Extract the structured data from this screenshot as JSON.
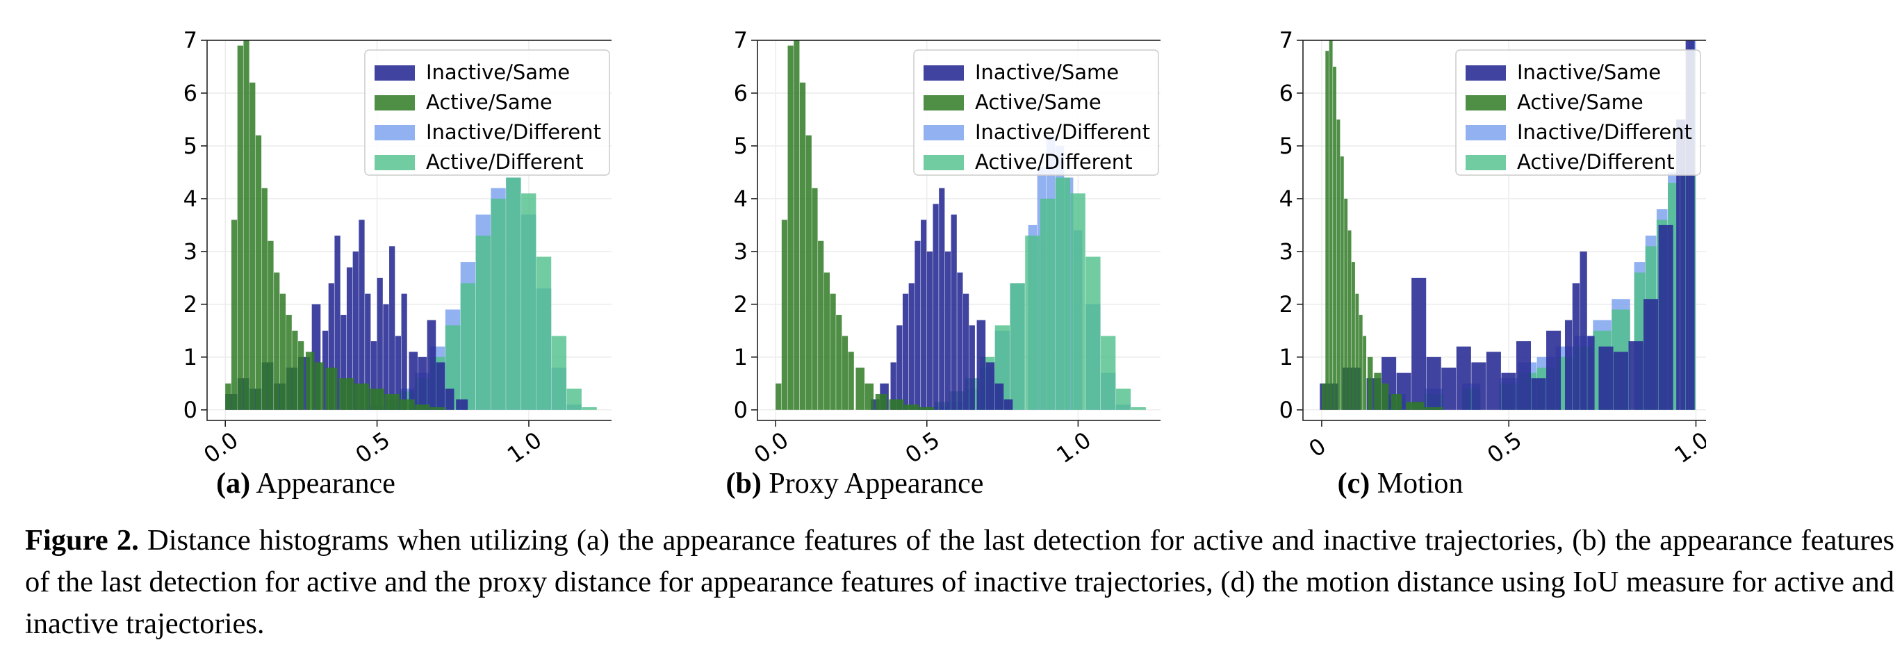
{
  "colors": {
    "inactive_same": "#2b2f96",
    "active_same": "#2f7a25",
    "inactive_different": "#7fa3ef",
    "active_different": "#4dbf8a"
  },
  "legend_entries": [
    "Inactive/Same",
    "Active/Same",
    "Inactive/Different",
    "Active/Different"
  ],
  "chart_data": [
    {
      "type": "bar",
      "subtitle_label": "(a)",
      "subtitle_text": "Appearance",
      "xlim": [
        -0.06,
        1.3
      ],
      "ylim": [
        -0.2,
        7
      ],
      "x_ticks": [
        0.0,
        0.5,
        1.0
      ],
      "x_tick_labels": [
        "0.0",
        "0.5",
        "1.0"
      ],
      "y_ticks": [
        0,
        1,
        2,
        3,
        4,
        5,
        6,
        7
      ],
      "y_tick_labels": [
        "0",
        "1",
        "2",
        "3",
        "4",
        "5",
        "6",
        "7"
      ],
      "legend": "top-right",
      "grid": true,
      "series": [
        {
          "name": "Inactive/Different",
          "color_key": "inactive_different",
          "x": [
            0.45,
            0.5,
            0.55,
            0.6,
            0.65,
            0.7,
            0.75,
            0.8,
            0.85,
            0.9,
            0.95,
            1.0,
            1.05,
            1.1,
            1.15
          ],
          "values": [
            0.02,
            0.08,
            0.2,
            0.4,
            0.7,
            1.2,
            1.9,
            2.8,
            3.7,
            4.2,
            4.4,
            3.7,
            2.3,
            0.8,
            0.1
          ]
        },
        {
          "name": "Active/Different",
          "color_key": "active_different",
          "x": [
            0.5,
            0.55,
            0.6,
            0.65,
            0.7,
            0.75,
            0.8,
            0.85,
            0.9,
            0.95,
            1.0,
            1.05,
            1.1,
            1.15,
            1.2
          ],
          "values": [
            0.05,
            0.15,
            0.35,
            0.6,
            1.0,
            1.6,
            2.4,
            3.3,
            4.0,
            4.4,
            4.1,
            2.9,
            1.4,
            0.4,
            0.05
          ]
        },
        {
          "name": "Inactive/Same",
          "color_key": "inactive_same",
          "x": [
            0.02,
            0.06,
            0.1,
            0.14,
            0.18,
            0.22,
            0.26,
            0.3,
            0.33,
            0.35,
            0.37,
            0.39,
            0.41,
            0.43,
            0.45,
            0.47,
            0.49,
            0.51,
            0.53,
            0.55,
            0.57,
            0.59,
            0.62,
            0.65,
            0.68,
            0.71,
            0.74,
            0.78
          ],
          "values": [
            0.3,
            0.6,
            0.4,
            0.9,
            0.5,
            0.8,
            1.0,
            2.0,
            1.5,
            2.4,
            3.3,
            1.8,
            2.7,
            3.0,
            3.6,
            2.2,
            1.3,
            2.5,
            2.0,
            3.1,
            1.4,
            2.2,
            1.1,
            1.0,
            1.7,
            0.9,
            0.4,
            0.2
          ]
        },
        {
          "name": "Active/Same",
          "color_key": "active_same",
          "x": [
            0.01,
            0.03,
            0.05,
            0.07,
            0.09,
            0.11,
            0.13,
            0.15,
            0.17,
            0.19,
            0.21,
            0.23,
            0.25,
            0.28,
            0.31,
            0.35,
            0.4,
            0.45,
            0.5,
            0.55,
            0.6,
            0.65,
            0.7
          ],
          "values": [
            0.5,
            3.6,
            6.9,
            7.0,
            6.2,
            5.2,
            4.2,
            3.2,
            2.6,
            2.2,
            1.8,
            1.5,
            1.3,
            1.1,
            0.9,
            0.8,
            0.6,
            0.5,
            0.4,
            0.3,
            0.2,
            0.1,
            0.05
          ]
        }
      ]
    },
    {
      "type": "bar",
      "subtitle_label": "(b)",
      "subtitle_text": "Proxy Appearance",
      "xlim": [
        -0.06,
        1.3
      ],
      "ylim": [
        -0.2,
        7
      ],
      "x_ticks": [
        0.0,
        0.5,
        1.0
      ],
      "x_tick_labels": [
        "0.0",
        "0.5",
        "1.0"
      ],
      "y_ticks": [
        0,
        1,
        2,
        3,
        4,
        5,
        6,
        7
      ],
      "y_tick_labels": [
        "0",
        "1",
        "2",
        "3",
        "4",
        "5",
        "6",
        "7"
      ],
      "legend": "top-right",
      "grid": true,
      "series": [
        {
          "name": "Inactive/Different",
          "color_key": "inactive_different",
          "x": [
            0.55,
            0.6,
            0.65,
            0.7,
            0.75,
            0.8,
            0.85,
            0.88,
            0.91,
            0.94,
            0.97,
            1.0,
            1.05,
            1.1,
            1.15
          ],
          "values": [
            0.05,
            0.15,
            0.4,
            0.8,
            1.5,
            2.4,
            3.5,
            4.6,
            5.2,
            5.0,
            4.4,
            3.4,
            2.0,
            0.7,
            0.1
          ]
        },
        {
          "name": "Active/Different",
          "color_key": "active_different",
          "x": [
            0.5,
            0.55,
            0.6,
            0.65,
            0.7,
            0.75,
            0.8,
            0.85,
            0.9,
            0.95,
            1.0,
            1.05,
            1.1,
            1.15,
            1.2
          ],
          "values": [
            0.05,
            0.15,
            0.35,
            0.6,
            1.0,
            1.6,
            2.4,
            3.3,
            4.0,
            4.4,
            4.1,
            2.9,
            1.4,
            0.4,
            0.05
          ]
        },
        {
          "name": "Inactive/Same",
          "color_key": "inactive_same",
          "x": [
            0.33,
            0.36,
            0.39,
            0.41,
            0.43,
            0.45,
            0.47,
            0.49,
            0.51,
            0.53,
            0.55,
            0.57,
            0.59,
            0.61,
            0.63,
            0.65,
            0.68,
            0.71,
            0.74,
            0.77
          ],
          "values": [
            0.2,
            0.5,
            0.9,
            1.6,
            2.2,
            2.4,
            3.2,
            3.6,
            3.0,
            3.9,
            4.2,
            3.0,
            3.7,
            2.6,
            2.2,
            1.6,
            1.7,
            0.9,
            0.5,
            0.2
          ]
        },
        {
          "name": "Active/Same",
          "color_key": "active_same",
          "x": [
            0.01,
            0.03,
            0.05,
            0.07,
            0.09,
            0.11,
            0.13,
            0.15,
            0.17,
            0.19,
            0.21,
            0.23,
            0.25,
            0.28,
            0.31,
            0.35,
            0.4,
            0.45,
            0.5
          ],
          "values": [
            0.5,
            3.6,
            6.9,
            7.0,
            6.2,
            5.2,
            4.2,
            3.2,
            2.6,
            2.2,
            1.8,
            1.4,
            1.1,
            0.8,
            0.5,
            0.3,
            0.2,
            0.1,
            0.05
          ]
        }
      ]
    },
    {
      "type": "bar",
      "subtitle_label": "(c)",
      "subtitle_text": "Motion",
      "xlim": [
        -0.05,
        1.04
      ],
      "ylim": [
        -0.2,
        7
      ],
      "x_ticks": [
        0,
        0.5,
        1.0
      ],
      "x_tick_labels": [
        "0",
        "0.5",
        "1.0"
      ],
      "y_ticks": [
        0,
        1,
        2,
        3,
        4,
        5,
        6,
        7
      ],
      "y_tick_labels": [
        "0",
        "1",
        "2",
        "3",
        "4",
        "5",
        "6",
        "7"
      ],
      "legend": "top-right",
      "grid": true,
      "series": [
        {
          "name": "Inactive/Different",
          "color_key": "inactive_different",
          "x": [
            0.2,
            0.3,
            0.4,
            0.5,
            0.55,
            0.6,
            0.65,
            0.7,
            0.75,
            0.8,
            0.85,
            0.88,
            0.91,
            0.94,
            0.97,
            0.99
          ],
          "values": [
            0.3,
            0.4,
            0.5,
            0.6,
            0.9,
            1.0,
            1.2,
            1.4,
            1.7,
            2.1,
            2.8,
            3.3,
            3.8,
            4.5,
            5.5,
            7.0
          ]
        },
        {
          "name": "Active/Different",
          "color_key": "active_different",
          "x": [
            0.2,
            0.3,
            0.4,
            0.5,
            0.55,
            0.6,
            0.65,
            0.7,
            0.75,
            0.8,
            0.85,
            0.88,
            0.91,
            0.94,
            0.97,
            0.99
          ],
          "values": [
            0.2,
            0.3,
            0.4,
            0.5,
            0.7,
            0.8,
            1.0,
            1.2,
            1.5,
            1.9,
            2.6,
            3.1,
            3.6,
            4.3,
            5.2,
            6.8
          ]
        },
        {
          "name": "Inactive/Same",
          "color_key": "inactive_same",
          "x": [
            0.02,
            0.08,
            0.14,
            0.18,
            0.22,
            0.26,
            0.3,
            0.34,
            0.38,
            0.42,
            0.46,
            0.5,
            0.54,
            0.58,
            0.62,
            0.66,
            0.68,
            0.7,
            0.72,
            0.76,
            0.8,
            0.84,
            0.88,
            0.92,
            0.96,
            0.985
          ],
          "values": [
            0.5,
            0.8,
            0.6,
            1.0,
            0.7,
            2.5,
            1.0,
            0.8,
            1.2,
            0.9,
            1.1,
            0.7,
            1.3,
            0.6,
            1.5,
            1.7,
            2.4,
            3.0,
            1.4,
            1.2,
            1.1,
            1.3,
            2.1,
            3.5,
            5.5,
            7.0
          ]
        },
        {
          "name": "Active/Same",
          "color_key": "active_same",
          "x": [
            0.005,
            0.015,
            0.025,
            0.035,
            0.045,
            0.055,
            0.065,
            0.075,
            0.085,
            0.095,
            0.105,
            0.115,
            0.13,
            0.15,
            0.17,
            0.2,
            0.25,
            0.3
          ],
          "values": [
            0.5,
            6.8,
            7.0,
            6.5,
            5.5,
            4.8,
            4.0,
            3.4,
            2.8,
            2.2,
            1.8,
            1.4,
            1.0,
            0.7,
            0.5,
            0.3,
            0.15,
            0.05
          ]
        }
      ]
    }
  ],
  "caption": {
    "label": "Figure 2.",
    "text": " Distance histograms when utilizing (a) the appearance features of the last detection for active and inactive trajectories, (b) the appearance features of the last detection for active and the proxy distance for appearance features of inactive trajectories, (d) the motion distance using IoU measure for active and inactive trajectories."
  }
}
